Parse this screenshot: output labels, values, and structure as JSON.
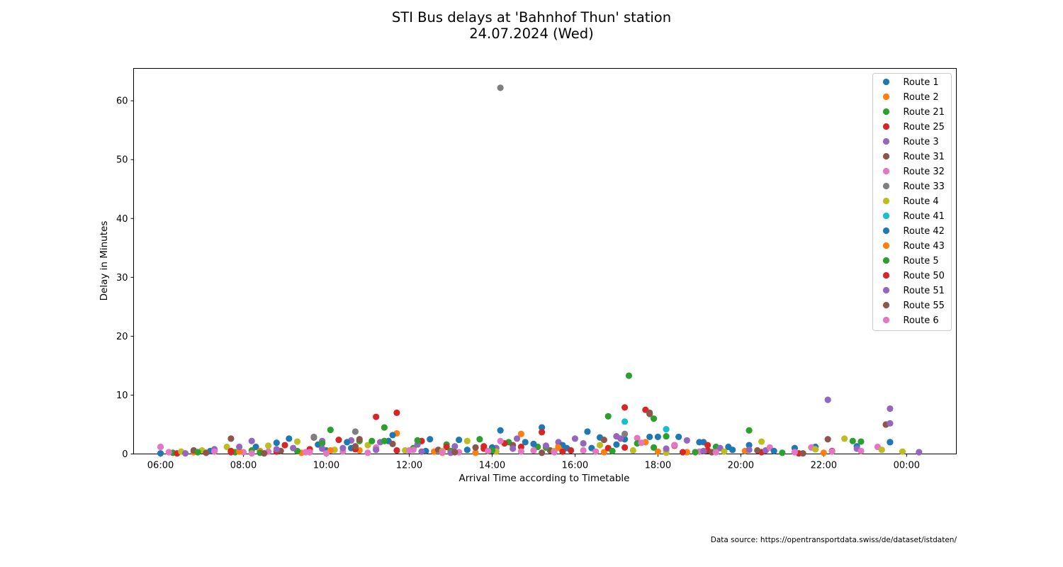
{
  "chart_data": {
    "type": "scatter",
    "title": "STI Bus delays at 'Bahnhof Thun' station",
    "subtitle": "24.07.2024 (Wed)",
    "xlabel": "Arrival Time according to Timetable",
    "ylabel": "Delay in Minutes",
    "x_unit": "hours of day (24.0 = 00:00 next day)",
    "xlim": [
      5.35,
      25.2
    ],
    "ylim": [
      0,
      65.5
    ],
    "x_ticks": [
      {
        "value": 6,
        "label": "06:00"
      },
      {
        "value": 8,
        "label": "08:00"
      },
      {
        "value": 10,
        "label": "10:00"
      },
      {
        "value": 12,
        "label": "12:00"
      },
      {
        "value": 14,
        "label": "14:00"
      },
      {
        "value": 16,
        "label": "16:00"
      },
      {
        "value": 18,
        "label": "18:00"
      },
      {
        "value": 20,
        "label": "20:00"
      },
      {
        "value": 22,
        "label": "22:00"
      },
      {
        "value": 24,
        "label": "00:00"
      }
    ],
    "y_ticks": [
      0,
      10,
      20,
      30,
      40,
      50,
      60
    ],
    "grid": false,
    "legend_position": "top-right",
    "series": [
      {
        "name": "Route 1",
        "color": "#1f77b4",
        "points": [
          [
            6.0,
            0.1
          ],
          [
            7.2,
            0.5
          ],
          [
            8.3,
            1.2
          ],
          [
            9.1,
            2.6
          ],
          [
            10.0,
            0.6
          ],
          [
            10.6,
            1.0
          ],
          [
            11.5,
            2.2
          ],
          [
            12.5,
            2.5
          ],
          [
            13.2,
            2.4
          ],
          [
            14.2,
            4.0
          ],
          [
            14.8,
            2.0
          ],
          [
            15.2,
            4.5
          ],
          [
            15.8,
            1.0
          ],
          [
            16.3,
            3.8
          ],
          [
            16.6,
            2.8
          ],
          [
            17.2,
            2.5
          ],
          [
            17.8,
            2.9
          ],
          [
            18.5,
            2.9
          ],
          [
            19.1,
            2.0
          ],
          [
            19.8,
            0.7
          ],
          [
            20.2,
            1.5
          ],
          [
            21.3,
            1.0
          ],
          [
            21.8,
            1.2
          ],
          [
            22.8,
            1.3
          ],
          [
            23.6,
            2.0
          ]
        ]
      },
      {
        "name": "Route 2",
        "color": "#ff7f0e",
        "points": [
          [
            6.8,
            0.3
          ],
          [
            8.4,
            0.5
          ],
          [
            9.4,
            0.2
          ],
          [
            10.8,
            0.6
          ],
          [
            11.7,
            3.5
          ],
          [
            12.6,
            0.4
          ],
          [
            13.6,
            0.2
          ],
          [
            14.7,
            3.4
          ],
          [
            15.6,
            1.3
          ],
          [
            16.7,
            0.3
          ],
          [
            17.7,
            2.0
          ],
          [
            18.7,
            0.3
          ],
          [
            20.1,
            0.5
          ],
          [
            22.0,
            0.2
          ]
        ]
      },
      {
        "name": "Route 21",
        "color": "#2ca02c",
        "points": [
          [
            6.3,
            0.2
          ],
          [
            7.8,
            0.3
          ],
          [
            8.4,
            0.2
          ],
          [
            9.3,
            0.5
          ],
          [
            10.1,
            4.1
          ],
          [
            10.8,
            2.2
          ],
          [
            11.4,
            4.5
          ],
          [
            12.1,
            1.0
          ],
          [
            12.9,
            1.6
          ],
          [
            13.7,
            2.5
          ],
          [
            14.4,
            2.0
          ],
          [
            15.1,
            1.2
          ],
          [
            16.8,
            6.4
          ],
          [
            17.3,
            13.3
          ],
          [
            17.9,
            6.0
          ],
          [
            18.2,
            3.0
          ],
          [
            19.4,
            1.2
          ],
          [
            20.2,
            4.0
          ],
          [
            21.0,
            0.2
          ],
          [
            21.8,
            0.8
          ],
          [
            22.9,
            2.1
          ]
        ]
      },
      {
        "name": "Route 25",
        "color": "#d62728",
        "points": [
          [
            6.4,
            0.1
          ],
          [
            7.7,
            0.3
          ],
          [
            8.8,
            0.4
          ],
          [
            9.6,
            0.8
          ],
          [
            10.3,
            2.4
          ],
          [
            11.2,
            6.3
          ],
          [
            11.7,
            7.0
          ],
          [
            12.3,
            2.2
          ],
          [
            12.9,
            1.2
          ],
          [
            13.8,
            1.3
          ],
          [
            14.3,
            1.8
          ],
          [
            15.2,
            3.7
          ],
          [
            15.9,
            0.6
          ],
          [
            16.8,
            1.0
          ],
          [
            17.2,
            7.9
          ],
          [
            17.7,
            7.5
          ],
          [
            18.4,
            1.4
          ],
          [
            19.2,
            1.5
          ],
          [
            20.5,
            0.3
          ],
          [
            21.4,
            0.1
          ]
        ]
      },
      {
        "name": "Route 3",
        "color": "#9467bd",
        "points": [
          [
            7.3,
            0.8
          ],
          [
            8.2,
            2.2
          ],
          [
            9.2,
            1.0
          ],
          [
            9.9,
            2.2
          ],
          [
            10.6,
            2.3
          ],
          [
            11.3,
            2.0
          ],
          [
            12.2,
            1.6
          ],
          [
            13.1,
            1.3
          ],
          [
            14.1,
            1.0
          ],
          [
            14.6,
            2.6
          ],
          [
            15.6,
            2.0
          ],
          [
            16.2,
            1.8
          ],
          [
            17.1,
            2.6
          ],
          [
            18.7,
            2.3
          ],
          [
            19.5,
            1.0
          ],
          [
            20.6,
            0.6
          ],
          [
            22.1,
            9.2
          ],
          [
            23.6,
            7.7
          ],
          [
            24.3,
            0.3
          ]
        ]
      },
      {
        "name": "Route 31",
        "color": "#8c564b",
        "points": [
          [
            6.8,
            0.6
          ],
          [
            7.7,
            2.6
          ],
          [
            8.9,
            0.5
          ],
          [
            9.7,
            2.8
          ],
          [
            10.8,
            2.5
          ],
          [
            11.6,
            1.7
          ],
          [
            12.7,
            0.7
          ],
          [
            13.6,
            1.1
          ],
          [
            14.5,
            1.5
          ],
          [
            15.4,
            0.6
          ],
          [
            16.7,
            2.4
          ],
          [
            17.8,
            6.8
          ],
          [
            18.4,
            1.5
          ],
          [
            20.4,
            0.6
          ],
          [
            22.1,
            2.5
          ],
          [
            23.5,
            5.0
          ]
        ]
      },
      {
        "name": "Route 32",
        "color": "#e377c2",
        "points": [
          [
            6.0,
            1.2
          ],
          [
            7.1,
            0.2
          ],
          [
            8.0,
            0.3
          ],
          [
            8.6,
            0.4
          ],
          [
            9.6,
            0.3
          ],
          [
            10.4,
            0.4
          ],
          [
            11.2,
            1.1
          ],
          [
            12.1,
            0.7
          ],
          [
            13.2,
            0.3
          ],
          [
            14.2,
            2.2
          ],
          [
            15.0,
            0.6
          ],
          [
            16.2,
            0.6
          ],
          [
            17.5,
            2.7
          ],
          [
            18.2,
            0.6
          ],
          [
            19.0,
            0.4
          ],
          [
            20.7,
            1.1
          ],
          [
            21.7,
            1.1
          ],
          [
            23.3,
            1.2
          ]
        ]
      },
      {
        "name": "Route 33",
        "color": "#7f7f7f",
        "points": [
          [
            14.2,
            62.2
          ],
          [
            10.7,
            3.8
          ],
          [
            17.2,
            3.4
          ],
          [
            9.7,
            2.9
          ]
        ]
      },
      {
        "name": "Route 4",
        "color": "#bcbd22",
        "points": [
          [
            6.5,
            0.4
          ],
          [
            7.0,
            0.6
          ],
          [
            7.6,
            1.2
          ],
          [
            8.6,
            1.4
          ],
          [
            9.3,
            2.1
          ],
          [
            10.2,
            0.7
          ],
          [
            11.0,
            1.5
          ],
          [
            11.9,
            0.6
          ],
          [
            12.8,
            0.5
          ],
          [
            13.4,
            2.2
          ],
          [
            14.1,
            0.4
          ],
          [
            15.5,
            0.5
          ],
          [
            16.6,
            1.5
          ],
          [
            17.4,
            0.6
          ],
          [
            18.2,
            0.2
          ],
          [
            19.6,
            0.4
          ],
          [
            20.5,
            2.1
          ],
          [
            21.8,
            0.8
          ],
          [
            22.5,
            2.6
          ],
          [
            23.4,
            0.7
          ],
          [
            23.9,
            0.4
          ]
        ]
      },
      {
        "name": "Route 41",
        "color": "#17becf",
        "points": [
          [
            17.2,
            5.5
          ],
          [
            18.2,
            4.2
          ]
        ]
      },
      {
        "name": "Route 42",
        "color": "#1f77b4",
        "points": [
          [
            8.8,
            1.9
          ],
          [
            9.8,
            1.6
          ],
          [
            10.5,
            2.0
          ],
          [
            11.6,
            3.2
          ],
          [
            12.4,
            0.5
          ],
          [
            13.4,
            0.7
          ],
          [
            14.0,
            1.1
          ],
          [
            15.0,
            1.7
          ],
          [
            15.7,
            1.5
          ],
          [
            16.4,
            1.0
          ],
          [
            17.0,
            1.6
          ],
          [
            18.0,
            2.9
          ],
          [
            19.0,
            2.0
          ],
          [
            19.7,
            1.2
          ],
          [
            20.8,
            0.5
          ],
          [
            23.6,
            2.0
          ]
        ]
      },
      {
        "name": "Route 43",
        "color": "#ff7f0e",
        "points": [
          [
            7.9,
            0.4
          ],
          [
            10.1,
            0.6
          ],
          [
            12.8,
            0.2
          ],
          [
            15.6,
            1.1
          ],
          [
            18.0,
            0.4
          ]
        ]
      },
      {
        "name": "Route 5",
        "color": "#2ca02c",
        "points": [
          [
            6.9,
            0.3
          ],
          [
            8.2,
            0.6
          ],
          [
            9.9,
            1.8
          ],
          [
            11.1,
            2.2
          ],
          [
            11.4,
            2.2
          ],
          [
            12.2,
            2.3
          ],
          [
            13.0,
            0.5
          ],
          [
            14.0,
            0.6
          ],
          [
            15.3,
            1.1
          ],
          [
            16.9,
            0.5
          ],
          [
            17.5,
            1.8
          ],
          [
            17.9,
            1.1
          ],
          [
            18.9,
            0.3
          ],
          [
            22.7,
            2.2
          ]
        ]
      },
      {
        "name": "Route 50",
        "color": "#d62728",
        "points": [
          [
            7.7,
            0.5
          ],
          [
            9.0,
            1.5
          ],
          [
            10.7,
            0.8
          ],
          [
            11.7,
            0.6
          ],
          [
            13.8,
            0.9
          ],
          [
            14.7,
            1.2
          ],
          [
            15.7,
            0.4
          ],
          [
            17.2,
            1.1
          ],
          [
            18.6,
            0.3
          ],
          [
            19.2,
            0.6
          ],
          [
            22.2,
            0.5
          ]
        ]
      },
      {
        "name": "Route 51",
        "color": "#9467bd",
        "points": [
          [
            6.6,
            0.1
          ],
          [
            7.9,
            1.2
          ],
          [
            8.8,
            0.8
          ],
          [
            9.9,
            0.9
          ],
          [
            10.4,
            1.0
          ],
          [
            11.2,
            0.7
          ],
          [
            12.3,
            0.4
          ],
          [
            13.0,
            0.2
          ],
          [
            14.5,
            0.9
          ],
          [
            15.3,
            1.4
          ],
          [
            16.0,
            2.6
          ],
          [
            17.0,
            3.0
          ],
          [
            18.2,
            0.9
          ],
          [
            19.1,
            0.5
          ],
          [
            20.2,
            0.7
          ],
          [
            22.8,
            0.9
          ],
          [
            23.6,
            5.2
          ]
        ]
      },
      {
        "name": "Route 55",
        "color": "#8c564b",
        "points": [
          [
            7.1,
            0.2
          ],
          [
            8.5,
            0.1
          ],
          [
            10.7,
            1.3
          ],
          [
            13.1,
            0.3
          ],
          [
            15.2,
            0.2
          ],
          [
            17.8,
            7.0
          ],
          [
            19.3,
            0.3
          ],
          [
            21.5,
            0.1
          ]
        ]
      },
      {
        "name": "Route 6",
        "color": "#e377c2",
        "points": [
          [
            6.2,
            0.3
          ],
          [
            7.3,
            0.4
          ],
          [
            8.2,
            0.1
          ],
          [
            9.5,
            0.3
          ],
          [
            10.0,
            0.1
          ],
          [
            11.0,
            0.2
          ],
          [
            12.0,
            0.6
          ],
          [
            12.8,
            0.3
          ],
          [
            13.9,
            0.5
          ],
          [
            14.7,
            0.4
          ],
          [
            15.5,
            0.3
          ],
          [
            16.5,
            0.4
          ],
          [
            17.6,
            1.9
          ],
          [
            18.4,
            1.5
          ],
          [
            19.4,
            0.3
          ],
          [
            21.3,
            0.3
          ],
          [
            22.2,
            0.4
          ],
          [
            22.9,
            0.5
          ]
        ]
      }
    ]
  },
  "footer": {
    "source": "Data source: https://opentransportdata.swiss/de/dataset/istdaten/"
  }
}
